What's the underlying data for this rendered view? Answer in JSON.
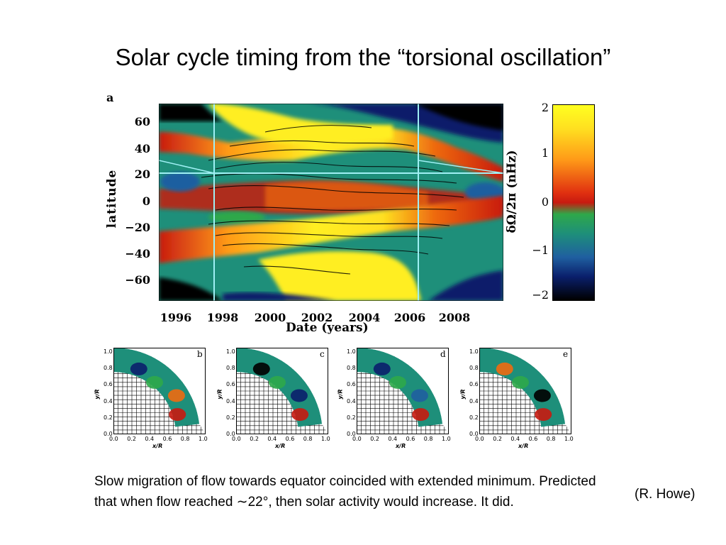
{
  "slide": {
    "title": "Solar cycle timing from the “torsional oscillation”",
    "caption": "Slow migration of flow towards equator coincided with extended minimum. Predicted that when flow reached ∼22°, then solar activity would increase. It did.",
    "credit": "(R. Howe)"
  },
  "main_panel": {
    "label": "a",
    "ylabel": "latitude",
    "xlabel": "Date (years)",
    "colorbar_label": "δΩ/2π  (nHz)",
    "y_ticks": [
      "60",
      "40",
      "20",
      "0",
      "−20",
      "−40",
      "−60"
    ],
    "x_ticks": [
      "1996",
      "1998",
      "2000",
      "2002",
      "2004",
      "2006",
      "2008"
    ],
    "colorbar_ticks": [
      "2",
      "1",
      "0",
      "−1",
      "−2"
    ],
    "colorbar_range": [
      -2,
      2
    ],
    "colors": {
      "black": "#000000",
      "navy": "#0a1f6b",
      "blue": "#1f5fa0",
      "teal": "#1e8f7a",
      "green": "#2ea84a",
      "red": "#c81a10",
      "orange": "#ee6a10",
      "yellow": "#ffee22",
      "marker": "#9ff0f4"
    }
  },
  "sub_panels": [
    {
      "label": "b",
      "ylabel": "y/R",
      "xlabel": "x/R"
    },
    {
      "label": "c",
      "ylabel": "y/R",
      "xlabel": "x/R"
    },
    {
      "label": "d",
      "ylabel": "y/R",
      "xlabel": "x/R"
    },
    {
      "label": "e",
      "ylabel": "y/R",
      "xlabel": "x/R"
    }
  ],
  "sub_axes": {
    "ticks": [
      "0.0",
      "0.2",
      "0.4",
      "0.6",
      "0.8",
      "1.0"
    ]
  }
}
